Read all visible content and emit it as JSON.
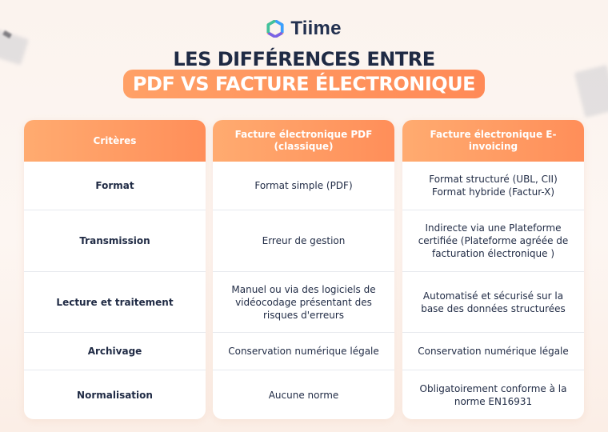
{
  "brand": {
    "name": "Tiime",
    "colors": [
      "#ff9a5a",
      "#3aa0ff",
      "#7a63e6",
      "#2cc7a3"
    ]
  },
  "title": {
    "line1": "LES DIFFÉRENCES ENTRE",
    "line2": "PDF VS FACTURE ÉLECTRONIQUE"
  },
  "accent_color": "#ff8e59",
  "table": {
    "headers": [
      "Critères",
      "Facture électronique PDF\n(classique)",
      "Facture électronique E-invoicing"
    ],
    "rows": [
      [
        "Format",
        "Format simple (PDF)",
        "Format structuré (UBL, CII)\nFormat hybride (Factur-X)"
      ],
      [
        "Transmission",
        "Erreur de gestion",
        "Indirecte via une Plateforme\ncertifiée (Plateforme agréée de\nfacturation électronique )"
      ],
      [
        "Lecture et traitement",
        "Manuel ou via des logiciels de\nvidéocodage présentant des\nrisques d'erreurs",
        "Automatisé et sécurisé sur la\nbase des données structurées"
      ],
      [
        "Archivage",
        "Conservation numérique légale",
        "Conservation numérique légale"
      ],
      [
        "Normalisation",
        "Aucune norme",
        "Obligatoirement conforme à la\nnorme EN16931"
      ]
    ]
  }
}
